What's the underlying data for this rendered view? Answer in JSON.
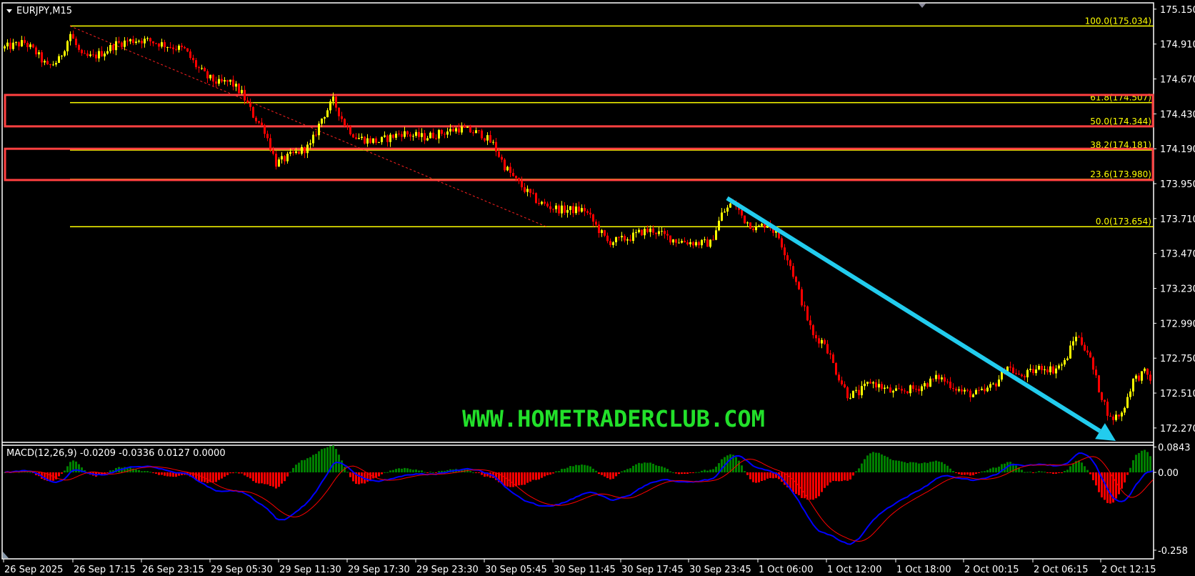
{
  "window": {
    "title": "EURJPY,M15"
  },
  "watermark": "WWW.HOMETRADERCLUB.COM",
  "colors": {
    "bull": "#ffff00",
    "bear": "#ff0000",
    "fib": "#ffff00",
    "zone": "#ff4040",
    "arrow": "#22ccee",
    "macd_main": "#0000ff",
    "macd_signal": "#ff0000",
    "hist_pos": "#008000",
    "hist_neg": "#ff0000",
    "watermark": "#22e02a"
  },
  "chart_data": {
    "type": "candlestick",
    "symbol": "EURJPY",
    "timeframe": "M15",
    "ylim": [
      172.15,
      175.17
    ],
    "y_ticks": [
      "175.150",
      "174.910",
      "174.670",
      "174.430",
      "174.190",
      "173.950",
      "173.710",
      "173.470",
      "173.230",
      "172.990",
      "172.750",
      "172.510",
      "172.270"
    ],
    "x_ticks": [
      "26 Sep 2025",
      "26 Sep 17:15",
      "26 Sep 23:15",
      "29 Sep 05:30",
      "29 Sep 11:30",
      "29 Sep 17:30",
      "29 Sep 23:30",
      "30 Sep 05:45",
      "30 Sep 11:45",
      "30 Sep 17:45",
      "30 Sep 23:45",
      "1 Oct 06:00",
      "1 Oct 12:00",
      "1 Oct 18:00",
      "2 Oct 00:15",
      "2 Oct 06:15",
      "2 Oct 12:15"
    ],
    "hourly_close": [
      174.88,
      174.9,
      174.92,
      174.85,
      174.75,
      174.8,
      174.98,
      174.82,
      174.82,
      174.86,
      174.91,
      174.93,
      174.94,
      174.93,
      174.91,
      174.89,
      174.87,
      174.76,
      174.68,
      174.64,
      174.65,
      174.57,
      174.42,
      174.32,
      174.09,
      174.13,
      174.17,
      174.21,
      174.4,
      174.52,
      174.36,
      174.27,
      174.25,
      174.24,
      174.27,
      174.3,
      174.28,
      174.27,
      174.29,
      174.31,
      174.33,
      174.31,
      174.29,
      174.22,
      174.07,
      173.97,
      173.89,
      173.82,
      173.79,
      173.77,
      173.77,
      173.77,
      173.66,
      173.55,
      173.56,
      173.58,
      173.62,
      173.63,
      173.59,
      173.56,
      173.55,
      173.54,
      173.54,
      173.74,
      173.82,
      173.7,
      173.64,
      173.68,
      173.58,
      173.39,
      173.14,
      172.9,
      172.86,
      172.66,
      172.5,
      172.51,
      172.59,
      172.55,
      172.51,
      172.53,
      172.54,
      172.58,
      172.62,
      172.57,
      172.52,
      172.5,
      172.52,
      172.58,
      172.7,
      172.62,
      172.65,
      172.69,
      172.67,
      172.72,
      172.91,
      172.8,
      172.54,
      172.33,
      172.37,
      172.6,
      172.65,
      172.57
    ],
    "fibonacci": {
      "high": 175.034,
      "low": 173.654,
      "levels": [
        {
          "label": "100.0(175.034)",
          "price": 175.034
        },
        {
          "label": "61.8(174.507)",
          "price": 174.507
        },
        {
          "label": "50.0(174.344)",
          "price": 174.344
        },
        {
          "label": "38.2(174.181)",
          "price": 174.181
        },
        {
          "label": "23.6(173.980)",
          "price": 173.98
        },
        {
          "label": "0.0(173.654)",
          "price": 173.654
        }
      ]
    },
    "zones": [
      {
        "from": 174.344,
        "to": 174.56
      },
      {
        "from": 173.975,
        "to": 174.19
      }
    ],
    "trend_arrow": {
      "direction": "down",
      "from_price": 173.85,
      "to_price": 172.18
    },
    "macd": {
      "label": "MACD(12,26,9) -0.0209 -0.0336 0.0127 0.0000",
      "params": [
        12,
        26,
        9
      ],
      "ylim": [
        -0.258,
        0.0843
      ],
      "y_ticks": [
        "0.0843",
        "0.00",
        "-0.258"
      ]
    }
  }
}
